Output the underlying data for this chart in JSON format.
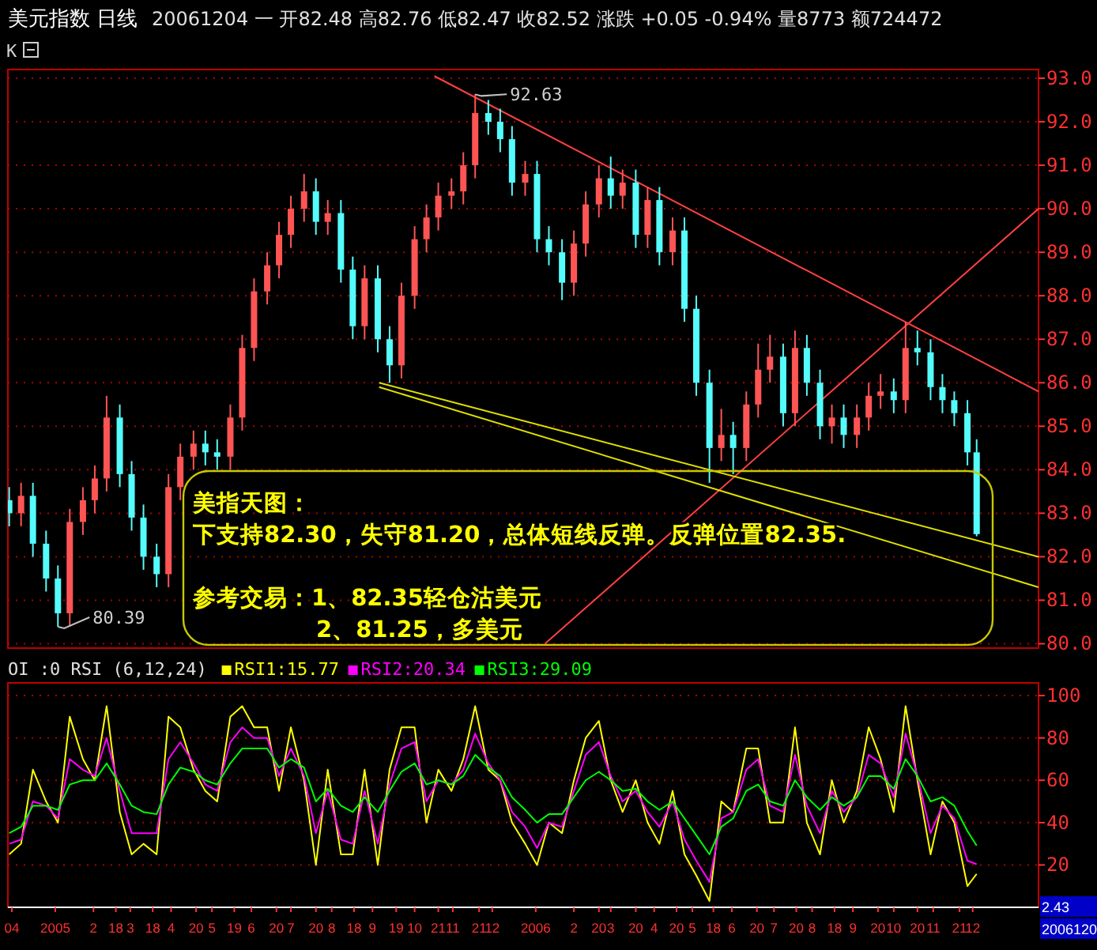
{
  "chart_data": [
    {
      "type": "candlestick",
      "title": "美元指数 日线",
      "subtitle": "20061204 一 开82.48 高82.76 低82.47 收82.52 涨跌 +0.05 -0.94% 量8773 额724472",
      "x": [
        "2004-11-29",
        "2004-12-08",
        "2004-12-17",
        "2004-12-27",
        "2005-01-05",
        "2005-01-14",
        "2005-01-24",
        "2005-02-02",
        "2005-02-11",
        "2005-02-21",
        "2005-03-02",
        "2005-03-11",
        "2005-03-21",
        "2005-03-30",
        "2005-04-08",
        "2005-04-18",
        "2005-04-27",
        "2005-05-06",
        "2005-05-16",
        "2005-05-25",
        "2005-06-03",
        "2005-06-13",
        "2005-06-22",
        "2005-07-01",
        "2005-07-11",
        "2005-07-20",
        "2005-07-29",
        "2005-08-08",
        "2005-08-17",
        "2005-08-26",
        "2005-09-05",
        "2005-09-14",
        "2005-09-23",
        "2005-10-03",
        "2005-10-12",
        "2005-10-21",
        "2005-10-31",
        "2005-11-09",
        "2005-11-18",
        "2005-11-28",
        "2005-12-07",
        "2005-12-16",
        "2005-12-26",
        "2006-01-04",
        "2006-01-13",
        "2006-01-23",
        "2006-02-01",
        "2006-02-10",
        "2006-02-20",
        "2006-03-01",
        "2006-03-10",
        "2006-03-20",
        "2006-03-29",
        "2006-04-07",
        "2006-04-17",
        "2006-04-26",
        "2006-05-05",
        "2006-05-15",
        "2006-05-24",
        "2006-06-02",
        "2006-06-12",
        "2006-06-21",
        "2006-06-30",
        "2006-07-10",
        "2006-07-19",
        "2006-07-28",
        "2006-08-07",
        "2006-08-16",
        "2006-08-25",
        "2006-09-04",
        "2006-09-13",
        "2006-09-22",
        "2006-10-02",
        "2006-10-11",
        "2006-10-20",
        "2006-10-30",
        "2006-11-08",
        "2006-11-17",
        "2006-11-27",
        "2006-12-04"
      ],
      "xlim": [
        "2004-11-28",
        "2007-01-20"
      ],
      "tick_labels": "y",
      "ylim": [
        79.9,
        93.2
      ],
      "yticks": [
        {
          "value": 80,
          "label": "80.0"
        },
        {
          "value": 81,
          "label": "81.0"
        },
        {
          "value": 82,
          "label": "82.0"
        },
        {
          "value": 83,
          "label": "83.0"
        },
        {
          "value": 84,
          "label": "84.0"
        },
        {
          "value": 85,
          "label": "85.0"
        },
        {
          "value": 86,
          "label": "86.0"
        },
        {
          "value": 87,
          "label": "87.0"
        },
        {
          "value": 88,
          "label": "88.0"
        },
        {
          "value": 89,
          "label": "89.0"
        },
        {
          "value": 90,
          "label": "90.0"
        },
        {
          "value": 91,
          "label": "91.0"
        },
        {
          "value": 92,
          "label": "92.0"
        },
        {
          "value": 93,
          "label": "93.0"
        }
      ],
      "grid": "y",
      "ohlc": [
        [
          83.3,
          83.6,
          82.7,
          83.0
        ],
        [
          83.0,
          83.7,
          82.7,
          83.4
        ],
        [
          83.4,
          83.7,
          82.0,
          82.3
        ],
        [
          82.3,
          82.6,
          81.2,
          81.5
        ],
        [
          81.5,
          81.8,
          80.39,
          80.7
        ],
        [
          80.7,
          83.1,
          80.4,
          82.8
        ],
        [
          82.8,
          83.6,
          82.5,
          83.3
        ],
        [
          83.3,
          84.1,
          83.0,
          83.8
        ],
        [
          83.8,
          85.7,
          83.5,
          85.2
        ],
        [
          85.2,
          85.5,
          83.6,
          83.9
        ],
        [
          83.9,
          84.2,
          82.6,
          82.9
        ],
        [
          82.9,
          83.2,
          81.7,
          82.0
        ],
        [
          82.0,
          82.3,
          81.3,
          81.6
        ],
        [
          81.6,
          83.9,
          81.3,
          83.6
        ],
        [
          83.6,
          84.6,
          83.3,
          84.3
        ],
        [
          84.3,
          84.9,
          84.0,
          84.6
        ],
        [
          84.6,
          84.9,
          84.1,
          84.4
        ],
        [
          84.4,
          84.7,
          84.0,
          84.3
        ],
        [
          84.3,
          85.5,
          84.0,
          85.2
        ],
        [
          85.2,
          87.1,
          84.9,
          86.8
        ],
        [
          86.8,
          88.4,
          86.5,
          88.1
        ],
        [
          88.1,
          89.0,
          87.8,
          88.7
        ],
        [
          88.7,
          89.7,
          88.4,
          89.4
        ],
        [
          89.4,
          90.3,
          89.1,
          90.0
        ],
        [
          90.0,
          90.8,
          89.7,
          90.4
        ],
        [
          90.4,
          90.7,
          89.4,
          89.7
        ],
        [
          89.7,
          90.2,
          89.4,
          89.9
        ],
        [
          89.9,
          90.2,
          88.3,
          88.6
        ],
        [
          88.6,
          88.9,
          87.0,
          87.3
        ],
        [
          87.3,
          88.7,
          87.0,
          88.4
        ],
        [
          88.4,
          88.7,
          86.7,
          87.0
        ],
        [
          87.0,
          87.3,
          86.0,
          86.4
        ],
        [
          86.4,
          88.3,
          86.1,
          88.0
        ],
        [
          88.0,
          89.6,
          87.7,
          89.3
        ],
        [
          89.3,
          90.1,
          89.0,
          89.8
        ],
        [
          89.8,
          90.6,
          89.5,
          90.3
        ],
        [
          90.3,
          90.7,
          90.0,
          90.4
        ],
        [
          90.4,
          91.3,
          90.1,
          91.0
        ],
        [
          91.0,
          92.63,
          90.7,
          92.2
        ],
        [
          92.2,
          92.5,
          91.7,
          92.0
        ],
        [
          92.0,
          92.3,
          91.3,
          91.6
        ],
        [
          91.6,
          91.9,
          90.3,
          90.6
        ],
        [
          90.6,
          91.1,
          90.3,
          90.8
        ],
        [
          90.8,
          91.1,
          89.0,
          89.3
        ],
        [
          89.3,
          89.6,
          88.7,
          89.0
        ],
        [
          89.0,
          89.3,
          87.9,
          88.3
        ],
        [
          88.3,
          89.5,
          88.0,
          89.2
        ],
        [
          89.2,
          90.4,
          88.9,
          90.1
        ],
        [
          90.1,
          91.0,
          89.8,
          90.7
        ],
        [
          90.7,
          91.2,
          90.0,
          90.3
        ],
        [
          90.3,
          90.9,
          90.0,
          90.6
        ],
        [
          90.6,
          90.9,
          89.1,
          89.4
        ],
        [
          89.4,
          90.5,
          89.1,
          90.2
        ],
        [
          90.2,
          90.5,
          88.7,
          89.0
        ],
        [
          89.0,
          89.8,
          88.7,
          89.5
        ],
        [
          89.5,
          89.8,
          87.4,
          87.7
        ],
        [
          87.7,
          88.0,
          85.7,
          86.0
        ],
        [
          86.0,
          86.3,
          83.7,
          84.5
        ],
        [
          84.5,
          85.4,
          84.2,
          84.8
        ],
        [
          84.8,
          85.1,
          83.9,
          84.5
        ],
        [
          84.5,
          85.8,
          84.2,
          85.5
        ],
        [
          85.5,
          86.9,
          85.2,
          86.3
        ],
        [
          86.3,
          87.1,
          86.0,
          86.6
        ],
        [
          86.6,
          86.9,
          85.0,
          85.3
        ],
        [
          85.3,
          87.2,
          85.0,
          86.8
        ],
        [
          86.8,
          87.1,
          85.7,
          86.0
        ],
        [
          86.0,
          86.3,
          84.7,
          85.0
        ],
        [
          85.0,
          85.5,
          84.6,
          85.2
        ],
        [
          85.2,
          85.5,
          84.5,
          84.8
        ],
        [
          84.8,
          85.5,
          84.5,
          85.2
        ],
        [
          85.2,
          86.0,
          84.9,
          85.7
        ],
        [
          85.7,
          86.2,
          85.4,
          85.8
        ],
        [
          85.8,
          86.1,
          85.3,
          85.6
        ],
        [
          85.6,
          87.4,
          85.3,
          86.8
        ],
        [
          86.8,
          87.2,
          86.4,
          86.7
        ],
        [
          86.7,
          87.0,
          85.6,
          85.9
        ],
        [
          85.9,
          86.2,
          85.3,
          85.6
        ],
        [
          85.6,
          85.8,
          85.0,
          85.3
        ],
        [
          85.3,
          85.6,
          84.1,
          84.4
        ],
        [
          84.4,
          84.7,
          82.47,
          82.52
        ]
      ],
      "series": [
        {
          "type": "line",
          "color": "#ff4040",
          "x": [
            "2005-10-18",
            "2007-01-20"
          ],
          "values": [
            93.05,
            85.8
          ]
        },
        {
          "type": "line",
          "color": "#ff4040",
          "x": [
            "2006-01-10",
            "2007-01-20"
          ],
          "values": [
            80.0,
            90.0
          ]
        },
        {
          "type": "line",
          "color": "#e0e000",
          "x": [
            "2005-09-06",
            "2007-01-20"
          ],
          "values": [
            86.0,
            82.0
          ]
        },
        {
          "type": "line",
          "color": "#e0e000",
          "x": [
            "2005-09-06",
            "2007-01-20"
          ],
          "values": [
            85.9,
            81.3
          ]
        }
      ],
      "annotations": [
        "美指天图：",
        "下支持82.30，失守81.20，总体短线反弹。反弹位置82.35.",
        "参考交易：1、82.35轻仓沽美元",
        "2、81.25，多美元",
        {
          "text": "92.63",
          "x": "2005-11-18",
          "y": 92.63
        },
        {
          "text": "80.39",
          "x": "2005-01-05",
          "y": 80.39
        },
        {
          "text": "K"
        }
      ]
    },
    {
      "type": "line",
      "legend_title": "OI :0 RSI (6,12,24)",
      "legend": "top left",
      "grid": "y",
      "x": [
        "2004-11-29",
        "2004-12-08",
        "2004-12-17",
        "2004-12-27",
        "2005-01-05",
        "2005-01-14",
        "2005-01-24",
        "2005-02-02",
        "2005-02-11",
        "2005-02-21",
        "2005-03-02",
        "2005-03-11",
        "2005-03-21",
        "2005-03-30",
        "2005-04-08",
        "2005-04-18",
        "2005-04-27",
        "2005-05-06",
        "2005-05-16",
        "2005-05-25",
        "2005-06-03",
        "2005-06-13",
        "2005-06-22",
        "2005-07-01",
        "2005-07-11",
        "2005-07-20",
        "2005-07-29",
        "2005-08-08",
        "2005-08-17",
        "2005-08-26",
        "2005-09-05",
        "2005-09-14",
        "2005-09-23",
        "2005-10-03",
        "2005-10-12",
        "2005-10-21",
        "2005-10-31",
        "2005-11-09",
        "2005-11-18",
        "2005-11-28",
        "2005-12-07",
        "2005-12-16",
        "2005-12-26",
        "2006-01-04",
        "2006-01-13",
        "2006-01-23",
        "2006-02-01",
        "2006-02-10",
        "2006-02-20",
        "2006-03-01",
        "2006-03-10",
        "2006-03-20",
        "2006-03-29",
        "2006-04-07",
        "2006-04-17",
        "2006-04-26",
        "2006-05-05",
        "2006-05-15",
        "2006-05-24",
        "2006-06-02",
        "2006-06-12",
        "2006-06-21",
        "2006-06-30",
        "2006-07-10",
        "2006-07-19",
        "2006-07-28",
        "2006-08-07",
        "2006-08-16",
        "2006-08-25",
        "2006-09-04",
        "2006-09-13",
        "2006-09-22",
        "2006-10-02",
        "2006-10-11",
        "2006-10-20",
        "2006-10-30",
        "2006-11-08",
        "2006-11-17",
        "2006-11-27",
        "2006-12-04"
      ],
      "xlim": [
        "2004-11-28",
        "2007-01-20"
      ],
      "xticks": [
        {
          "value": "2004-12-01",
          "label": "04"
        },
        {
          "value": "2005-01-03",
          "label": "2005"
        },
        {
          "value": "2005-02-01",
          "label": "2"
        },
        {
          "value": "2005-02-18",
          "label": "18"
        },
        {
          "value": "2005-03-01",
          "label": "3"
        },
        {
          "value": "2005-03-18",
          "label": "18"
        },
        {
          "value": "2005-04-01",
          "label": "4"
        },
        {
          "value": "2005-04-20",
          "label": "20"
        },
        {
          "value": "2005-05-02",
          "label": "5"
        },
        {
          "value": "2005-05-19",
          "label": "19"
        },
        {
          "value": "2005-06-01",
          "label": "6"
        },
        {
          "value": "2005-06-20",
          "label": "20"
        },
        {
          "value": "2005-07-01",
          "label": "7"
        },
        {
          "value": "2005-07-20",
          "label": "20"
        },
        {
          "value": "2005-08-01",
          "label": "8"
        },
        {
          "value": "2005-08-18",
          "label": "18"
        },
        {
          "value": "2005-09-01",
          "label": "9"
        },
        {
          "value": "2005-09-19",
          "label": "19"
        },
        {
          "value": "2005-10-03",
          "label": "10"
        },
        {
          "value": "2005-10-21",
          "label": "21"
        },
        {
          "value": "2005-11-01",
          "label": "11"
        },
        {
          "value": "2005-11-21",
          "label": "21"
        },
        {
          "value": "2005-12-01",
          "label": "12"
        },
        {
          "value": "2006-01-03",
          "label": "2006"
        },
        {
          "value": "2006-02-01",
          "label": "2"
        },
        {
          "value": "2006-02-20",
          "label": "20"
        },
        {
          "value": "2006-03-01",
          "label": "3"
        },
        {
          "value": "2006-03-20",
          "label": "20"
        },
        {
          "value": "2006-04-03",
          "label": "4"
        },
        {
          "value": "2006-04-20",
          "label": "20"
        },
        {
          "value": "2006-05-02",
          "label": "5"
        },
        {
          "value": "2006-05-18",
          "label": "18"
        },
        {
          "value": "2006-06-01",
          "label": "6"
        },
        {
          "value": "2006-06-20",
          "label": "20"
        },
        {
          "value": "2006-07-03",
          "label": "7"
        },
        {
          "value": "2006-07-20",
          "label": "20"
        },
        {
          "value": "2006-08-01",
          "label": "8"
        },
        {
          "value": "2006-08-18",
          "label": "18"
        },
        {
          "value": "2006-09-01",
          "label": "9"
        },
        {
          "value": "2006-09-20",
          "label": "20"
        },
        {
          "value": "2006-10-02",
          "label": "10"
        },
        {
          "value": "2006-10-20",
          "label": "20"
        },
        {
          "value": "2006-11-01",
          "label": "11"
        },
        {
          "value": "2006-11-21",
          "label": "21"
        },
        {
          "value": "2006-12-01",
          "label": "12"
        }
      ],
      "ylim": [
        0,
        106
      ],
      "yticks": [
        20,
        40,
        60,
        80,
        100
      ],
      "series": [
        {
          "name": "RSI1:15.77",
          "color": "#ffff00",
          "values": [
            25,
            30,
            65,
            50,
            40,
            90,
            70,
            60,
            95,
            45,
            25,
            30,
            25,
            90,
            85,
            65,
            55,
            50,
            90,
            95,
            85,
            85,
            55,
            85,
            60,
            20,
            65,
            25,
            25,
            65,
            20,
            65,
            85,
            85,
            40,
            65,
            55,
            70,
            95,
            65,
            60,
            40,
            30,
            20,
            40,
            35,
            60,
            80,
            88,
            60,
            45,
            60,
            40,
            30,
            55,
            25,
            15,
            3,
            50,
            45,
            75,
            75,
            40,
            40,
            85,
            40,
            25,
            60,
            40,
            55,
            85,
            70,
            45,
            95,
            60,
            25,
            50,
            40,
            10,
            15.77
          ]
        },
        {
          "name": "RSI2:20.34",
          "color": "#ff00ff",
          "values": [
            30,
            32,
            50,
            48,
            42,
            70,
            65,
            62,
            80,
            55,
            35,
            35,
            35,
            70,
            78,
            68,
            58,
            55,
            78,
            85,
            80,
            80,
            62,
            75,
            62,
            35,
            55,
            32,
            30,
            55,
            30,
            58,
            75,
            78,
            50,
            60,
            58,
            65,
            82,
            68,
            60,
            45,
            38,
            28,
            40,
            38,
            55,
            72,
            78,
            62,
            50,
            55,
            45,
            38,
            50,
            32,
            22,
            12,
            42,
            45,
            65,
            70,
            48,
            45,
            72,
            48,
            35,
            55,
            45,
            52,
            72,
            68,
            52,
            82,
            62,
            35,
            48,
            42,
            22,
            20.34
          ]
        },
        {
          "name": "RSI3:29.09",
          "color": "#00ff00",
          "values": [
            35,
            38,
            48,
            48,
            46,
            58,
            60,
            60,
            68,
            58,
            48,
            45,
            44,
            58,
            66,
            64,
            60,
            58,
            68,
            75,
            75,
            75,
            66,
            70,
            66,
            50,
            56,
            48,
            45,
            52,
            45,
            55,
            64,
            68,
            58,
            60,
            58,
            62,
            72,
            66,
            62,
            52,
            46,
            40,
            44,
            44,
            52,
            60,
            64,
            60,
            55,
            56,
            50,
            46,
            50,
            42,
            34,
            25,
            38,
            42,
            55,
            58,
            50,
            48,
            60,
            52,
            46,
            52,
            48,
            52,
            62,
            62,
            56,
            70,
            62,
            50,
            52,
            48,
            36,
            29.09
          ]
        }
      ],
      "annotations": [
        "2.43",
        "2006120"
      ]
    }
  ]
}
